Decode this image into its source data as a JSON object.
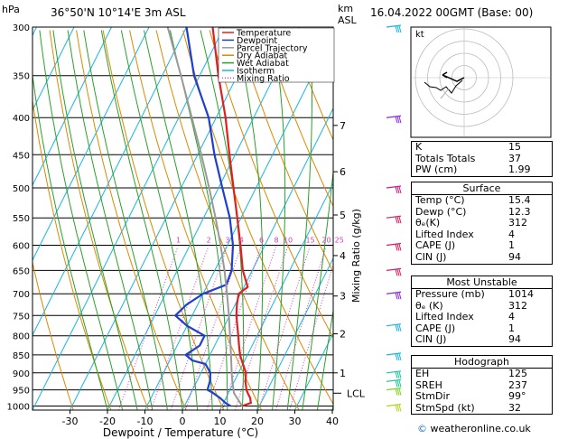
{
  "header": {
    "left_unit": "hPa",
    "location": "36°50'N  10°14'E  3m  ASL",
    "km_label": "km",
    "asl_label": "ASL",
    "datetime": "16.04.2022  00GMT  (Base: 00)"
  },
  "legend": [
    {
      "label": "Temperature",
      "color": "#e02020",
      "style": "solid"
    },
    {
      "label": "Dewpoint",
      "color": "#1e3fd0",
      "style": "solid"
    },
    {
      "label": "Parcel Trajectory",
      "color": "#999999",
      "style": "solid"
    },
    {
      "label": "Dry Adiabat",
      "color": "#d98a00",
      "style": "solid"
    },
    {
      "label": "Wet Adiabat",
      "color": "#2aa02a",
      "style": "solid"
    },
    {
      "label": "Isotherm",
      "color": "#19b5e0",
      "style": "solid"
    },
    {
      "label": "Mixing Ratio",
      "color": "#d63cc0",
      "style": "dotted"
    }
  ],
  "chart_data": {
    "type": "line",
    "xlabel": "Dewpoint / Temperature (°C)",
    "ylabel": "hPa",
    "right_axis_label": "Mixing Ratio (g/kg)",
    "x_ticks": [
      -30,
      -20,
      -10,
      0,
      10,
      20,
      30,
      40
    ],
    "xlim": [
      -35,
      40
    ],
    "pressure_levels": [
      300,
      350,
      400,
      450,
      500,
      550,
      600,
      650,
      700,
      750,
      800,
      850,
      900,
      950,
      1000
    ],
    "ylim": [
      1013,
      300
    ],
    "skew": 45,
    "km_ticks": [
      {
        "label": "1",
        "p": 900
      },
      {
        "label": "2",
        "p": 795
      },
      {
        "label": "3",
        "p": 705
      },
      {
        "label": "4",
        "p": 620
      },
      {
        "label": "5",
        "p": 545
      },
      {
        "label": "6",
        "p": 475
      },
      {
        "label": "7",
        "p": 410
      }
    ],
    "lcl": {
      "label": "LCL",
      "p": 960
    },
    "mixing_ratio_labels": [
      "1",
      "2",
      "3",
      "4",
      "6",
      "8",
      "10",
      "15",
      "20",
      "25"
    ],
    "mixing_ratio_values": [
      1,
      2,
      3,
      4,
      6,
      8,
      10,
      15,
      20,
      25
    ],
    "series": [
      {
        "name": "Temperature",
        "color": "#e02020",
        "p": [
          1000,
          990,
          975,
          960,
          950,
          925,
          900,
          875,
          850,
          825,
          800,
          775,
          750,
          725,
          700,
          685,
          650,
          600,
          550,
          500,
          450,
          400,
          350,
          300
        ],
        "t": [
          15.4,
          17.3,
          16.5,
          15.2,
          14.4,
          13.0,
          12.0,
          10.0,
          8.0,
          6.5,
          5.0,
          3.4,
          1.8,
          0.5,
          -0.5,
          1.0,
          -2.5,
          -6.5,
          -11.0,
          -16.0,
          -21.5,
          -27.5,
          -35.0,
          -43.0
        ]
      },
      {
        "name": "Dewpoint",
        "color": "#1e3fd0",
        "p": [
          1000,
          990,
          975,
          960,
          950,
          925,
          900,
          875,
          865,
          850,
          825,
          800,
          775,
          750,
          725,
          700,
          680,
          650,
          600,
          550,
          500,
          450,
          400,
          350,
          300
        ],
        "t": [
          12.3,
          10.5,
          8.5,
          6.0,
          4.0,
          3.5,
          2.5,
          0.0,
          -4.0,
          -6.5,
          -4.0,
          -4.0,
          -10.0,
          -14.5,
          -13.0,
          -10.0,
          -5.0,
          -5.5,
          -8.5,
          -13.0,
          -19.0,
          -25.5,
          -32.0,
          -41.5,
          -50.0
        ]
      },
      {
        "name": "Parcel Trajectory",
        "color": "#999999",
        "p": [
          1000,
          960,
          925,
          900,
          850,
          800,
          750,
          700,
          650,
          600,
          550,
          500,
          450,
          400,
          350,
          300
        ],
        "t": [
          15.4,
          11.5,
          9.5,
          8.2,
          5.6,
          2.8,
          -0.2,
          -3.6,
          -7.4,
          -11.8,
          -16.8,
          -22.5,
          -29.0,
          -36.5,
          -45.0,
          -55.0
        ]
      }
    ]
  },
  "wind_barbs": [
    {
      "p": 300,
      "color": "#19b5e0"
    },
    {
      "p": 400,
      "color": "#8b2be2"
    },
    {
      "p": 500,
      "color": "#cc1a8a"
    },
    {
      "p": 550,
      "color": "#d61e60"
    },
    {
      "p": 600,
      "color": "#d61e60"
    },
    {
      "p": 650,
      "color": "#d61e60"
    },
    {
      "p": 700,
      "color": "#8b2be2"
    },
    {
      "p": 775,
      "color": "#19b5e0"
    },
    {
      "p": 850,
      "color": "#19b5e0"
    },
    {
      "p": 900,
      "color": "#19c4a0"
    },
    {
      "p": 925,
      "color": "#19c4a0"
    },
    {
      "p": 950,
      "color": "#7dd321"
    },
    {
      "p": 1000,
      "color": "#b5d321"
    }
  ],
  "hodograph": {
    "label": "kt"
  },
  "indices": [
    {
      "label": "K",
      "value": "15"
    },
    {
      "label": "Totals Totals",
      "value": "37"
    },
    {
      "label": "PW (cm)",
      "value": "1.99"
    }
  ],
  "surface": {
    "title": "Surface",
    "rows": [
      {
        "label": "Temp (°C)",
        "value": "15.4"
      },
      {
        "label": "Dewp (°C)",
        "value": "12.3"
      },
      {
        "label": "θₑ(K)",
        "value": "312"
      },
      {
        "label": "Lifted Index",
        "value": "4"
      },
      {
        "label": "CAPE (J)",
        "value": "1"
      },
      {
        "label": "CIN (J)",
        "value": "94"
      }
    ]
  },
  "most_unstable": {
    "title": "Most Unstable",
    "rows": [
      {
        "label": "Pressure (mb)",
        "value": "1014"
      },
      {
        "label": "θₑ (K)",
        "value": "312"
      },
      {
        "label": "Lifted Index",
        "value": "4"
      },
      {
        "label": "CAPE (J)",
        "value": "1"
      },
      {
        "label": "CIN (J)",
        "value": "94"
      }
    ]
  },
  "hodograph_table": {
    "title": "Hodograph",
    "rows": [
      {
        "label": "EH",
        "value": "125"
      },
      {
        "label": "SREH",
        "value": "237"
      },
      {
        "label": "StmDir",
        "value": "99°"
      },
      {
        "label": "StmSpd (kt)",
        "value": "32"
      }
    ]
  },
  "footer": {
    "copyright": "©",
    "site": " weatheronline.co.uk"
  }
}
